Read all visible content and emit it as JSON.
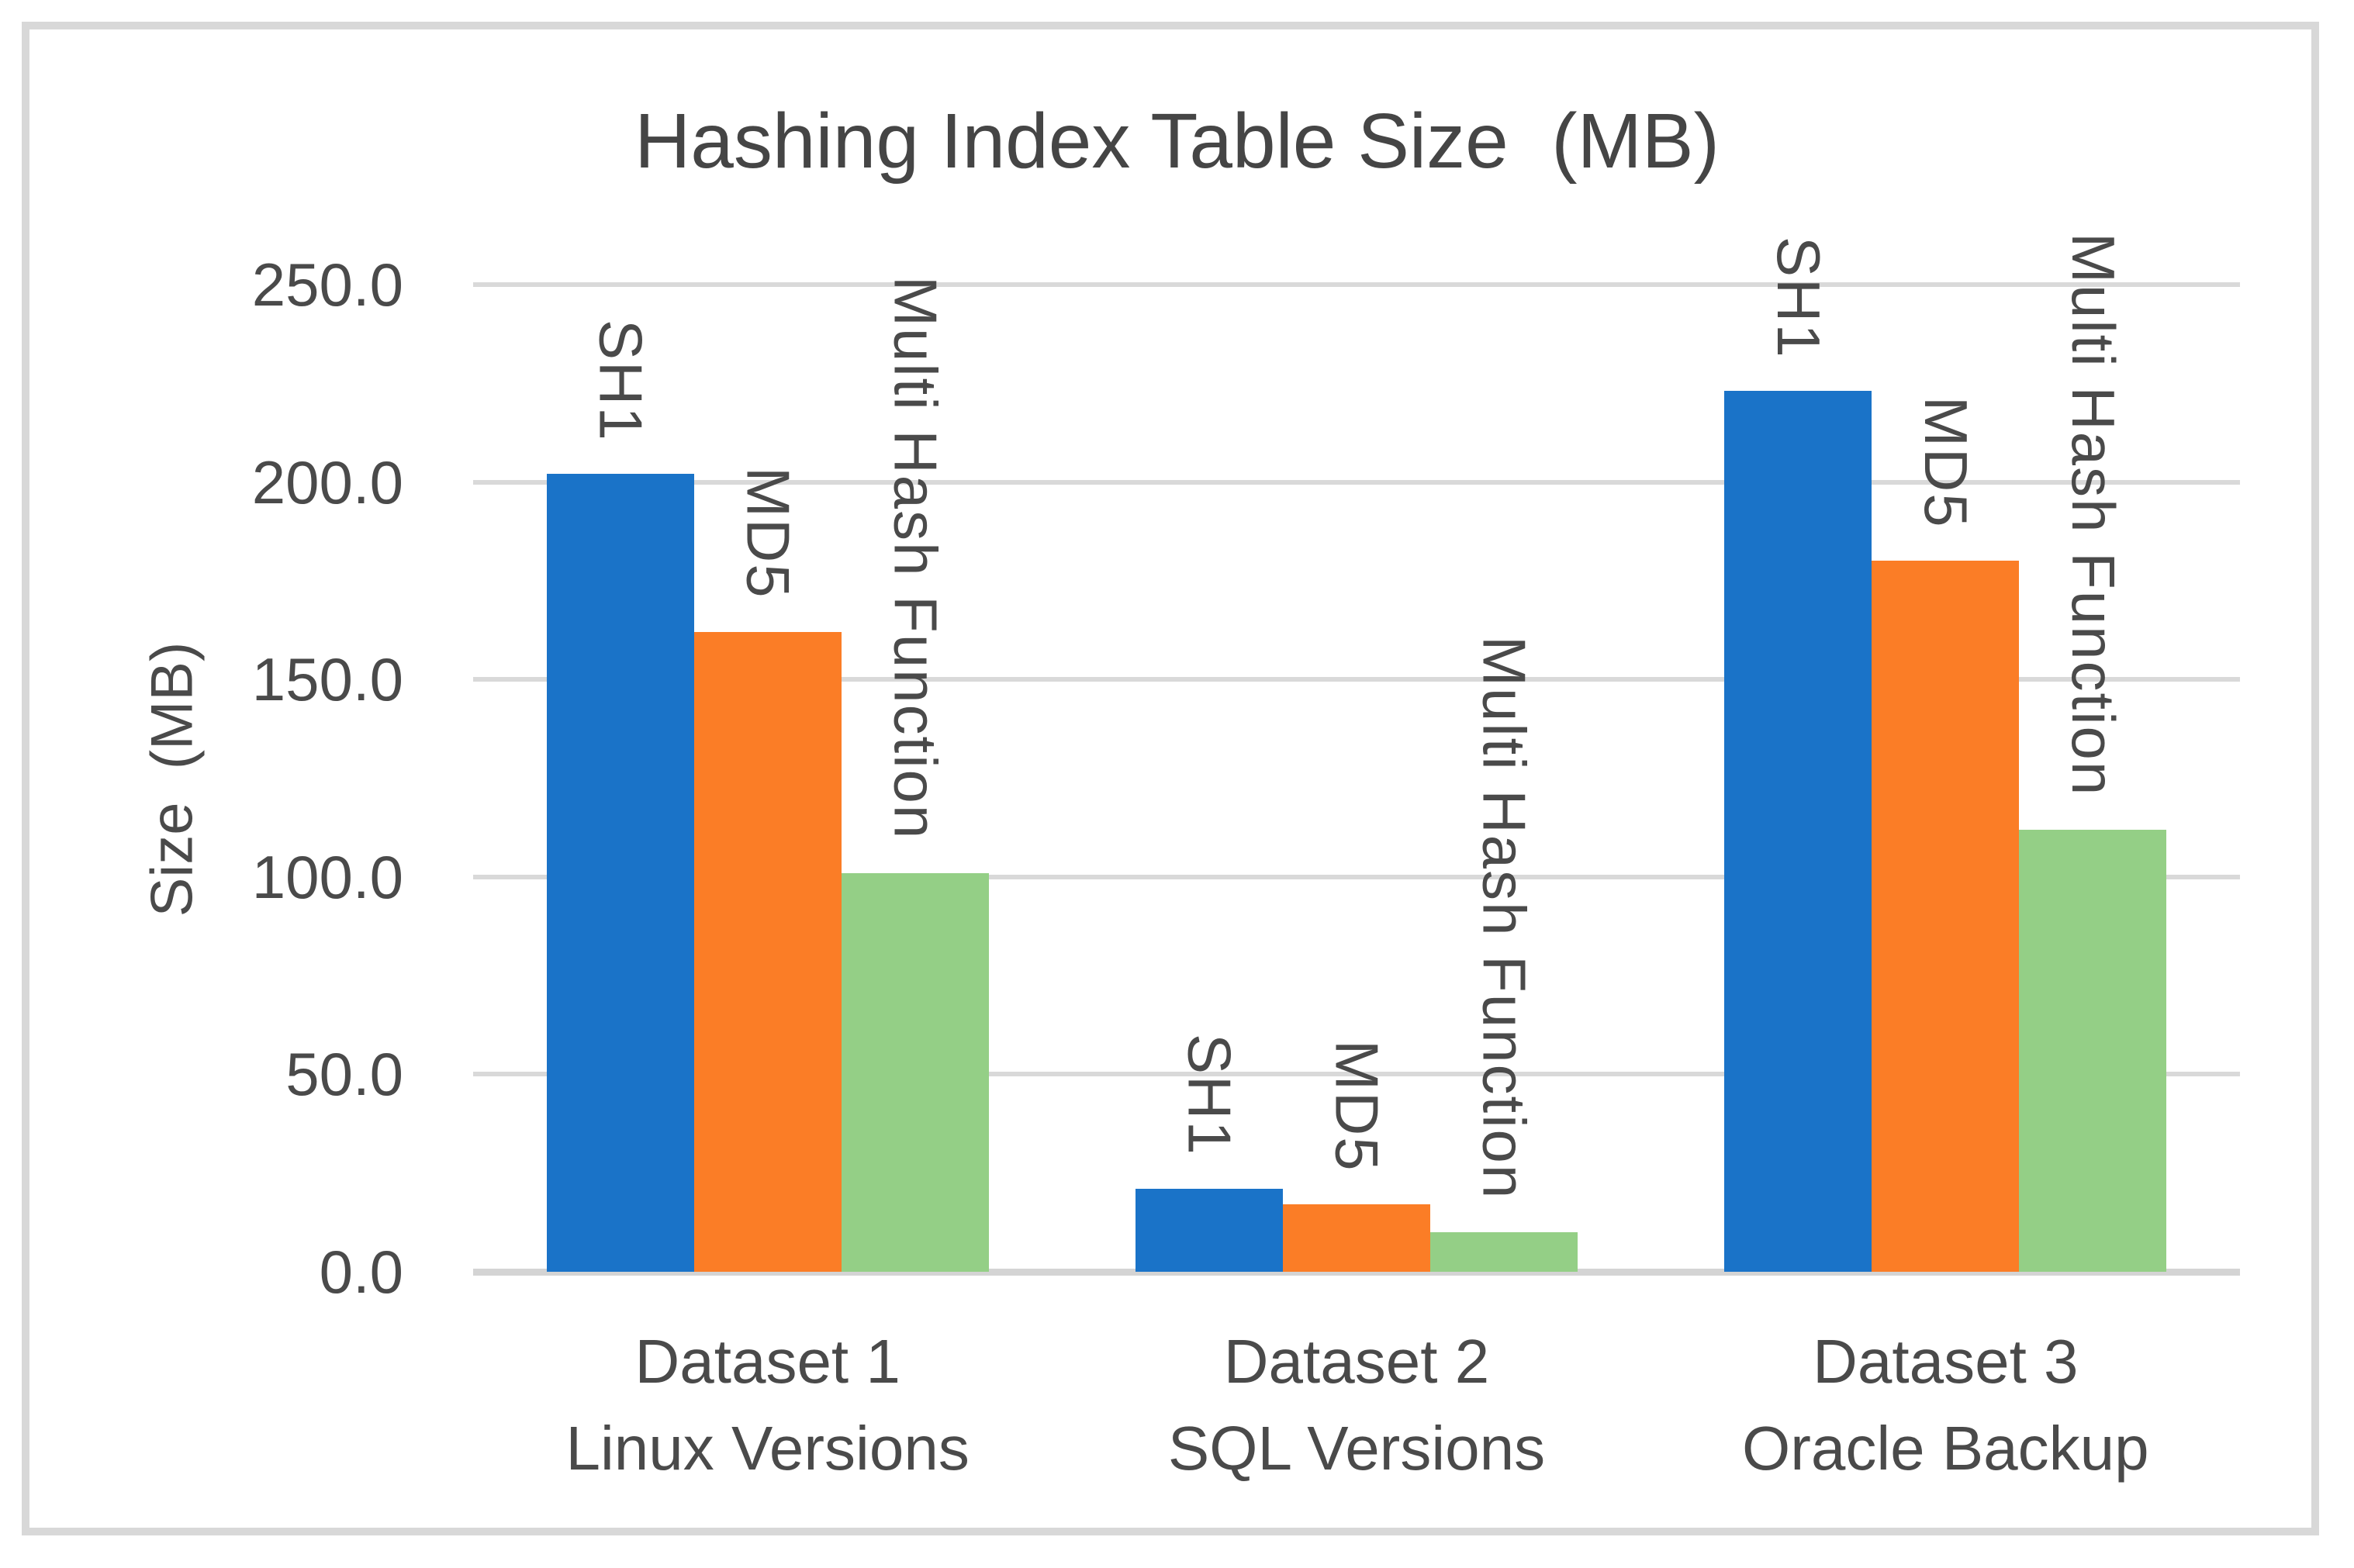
{
  "chart_data": {
    "type": "bar",
    "title": "Hashing Index Table Size  (MB)",
    "xlabel": "",
    "ylabel": "Size  (MB)",
    "ylim": [
      0,
      250
    ],
    "y_tick_values": [
      0,
      50,
      100,
      150,
      200,
      250
    ],
    "y_tick_labels": [
      "0.0",
      "50.0",
      "100.0",
      "150.0",
      "200.0",
      "250.0"
    ],
    "grid": true,
    "legend": "none",
    "bar_label_style": "series name above each bar, rotated 90° clockwise",
    "categories": [
      {
        "label_line1": "Dataset 1",
        "label_line2": "Linux Versions"
      },
      {
        "label_line1": "Dataset 2",
        "label_line2": "SQL Versions"
      },
      {
        "label_line1": "Dataset 3",
        "label_line2": "Oracle Backup"
      }
    ],
    "series": [
      {
        "name": "SH1",
        "color": "#1A73C8",
        "values": [
          202,
          21,
          223
        ]
      },
      {
        "name": "MD5",
        "color": "#FB7D26",
        "values": [
          162,
          17,
          180
        ]
      },
      {
        "name": "Multi Hash Function",
        "color": "#94CF86",
        "values": [
          101,
          10,
          112
        ]
      }
    ],
    "colors": {
      "gridline": "#D9D9D9",
      "frame_border": "#D8D8D8",
      "text": "#4A4A4A"
    }
  }
}
